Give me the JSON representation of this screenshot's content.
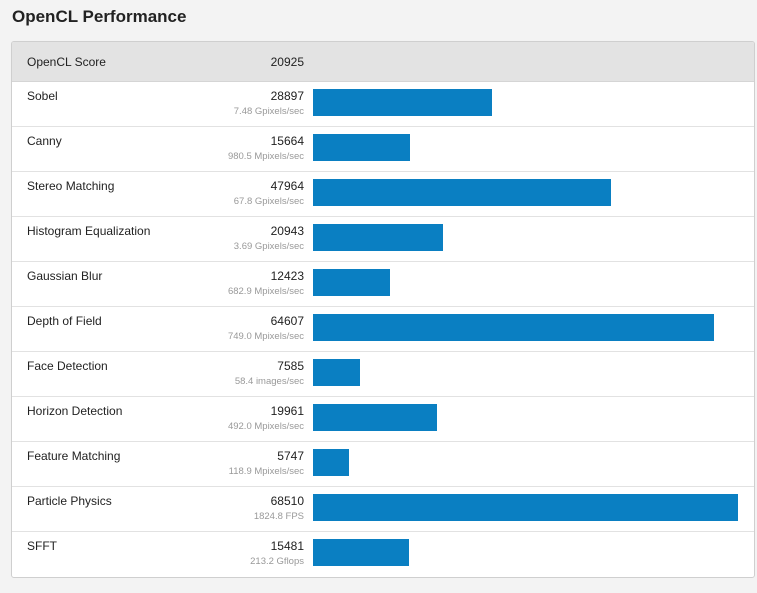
{
  "page": {
    "title": "OpenCL Performance"
  },
  "summary": {
    "label": "OpenCL Score",
    "score": "20925"
  },
  "colors": {
    "bar": "#0a7fc2",
    "header_bg": "#e3e3e3",
    "rate_text": "#999999"
  },
  "chart_data": {
    "type": "bar",
    "orientation": "horizontal",
    "title": "OpenCL Performance",
    "xlim": [
      0,
      68510
    ],
    "categories": [
      "Sobel",
      "Canny",
      "Stereo Matching",
      "Histogram Equalization",
      "Gaussian Blur",
      "Depth of Field",
      "Face Detection",
      "Horizon Detection",
      "Feature Matching",
      "Particle Physics",
      "SFFT"
    ],
    "values": [
      28897,
      15664,
      47964,
      20943,
      12423,
      64607,
      7585,
      19961,
      5747,
      68510,
      15481
    ],
    "rates": [
      "7.48 Gpixels/sec",
      "980.5 Mpixels/sec",
      "67.8 Gpixels/sec",
      "3.69 Gpixels/sec",
      "682.9 Mpixels/sec",
      "749.0 Mpixels/sec",
      "58.4 images/sec",
      "492.0 Mpixels/sec",
      "118.9 Mpixels/sec",
      "1824.8 FPS",
      "213.2 Gflops"
    ],
    "grid": false,
    "legend": "none"
  }
}
